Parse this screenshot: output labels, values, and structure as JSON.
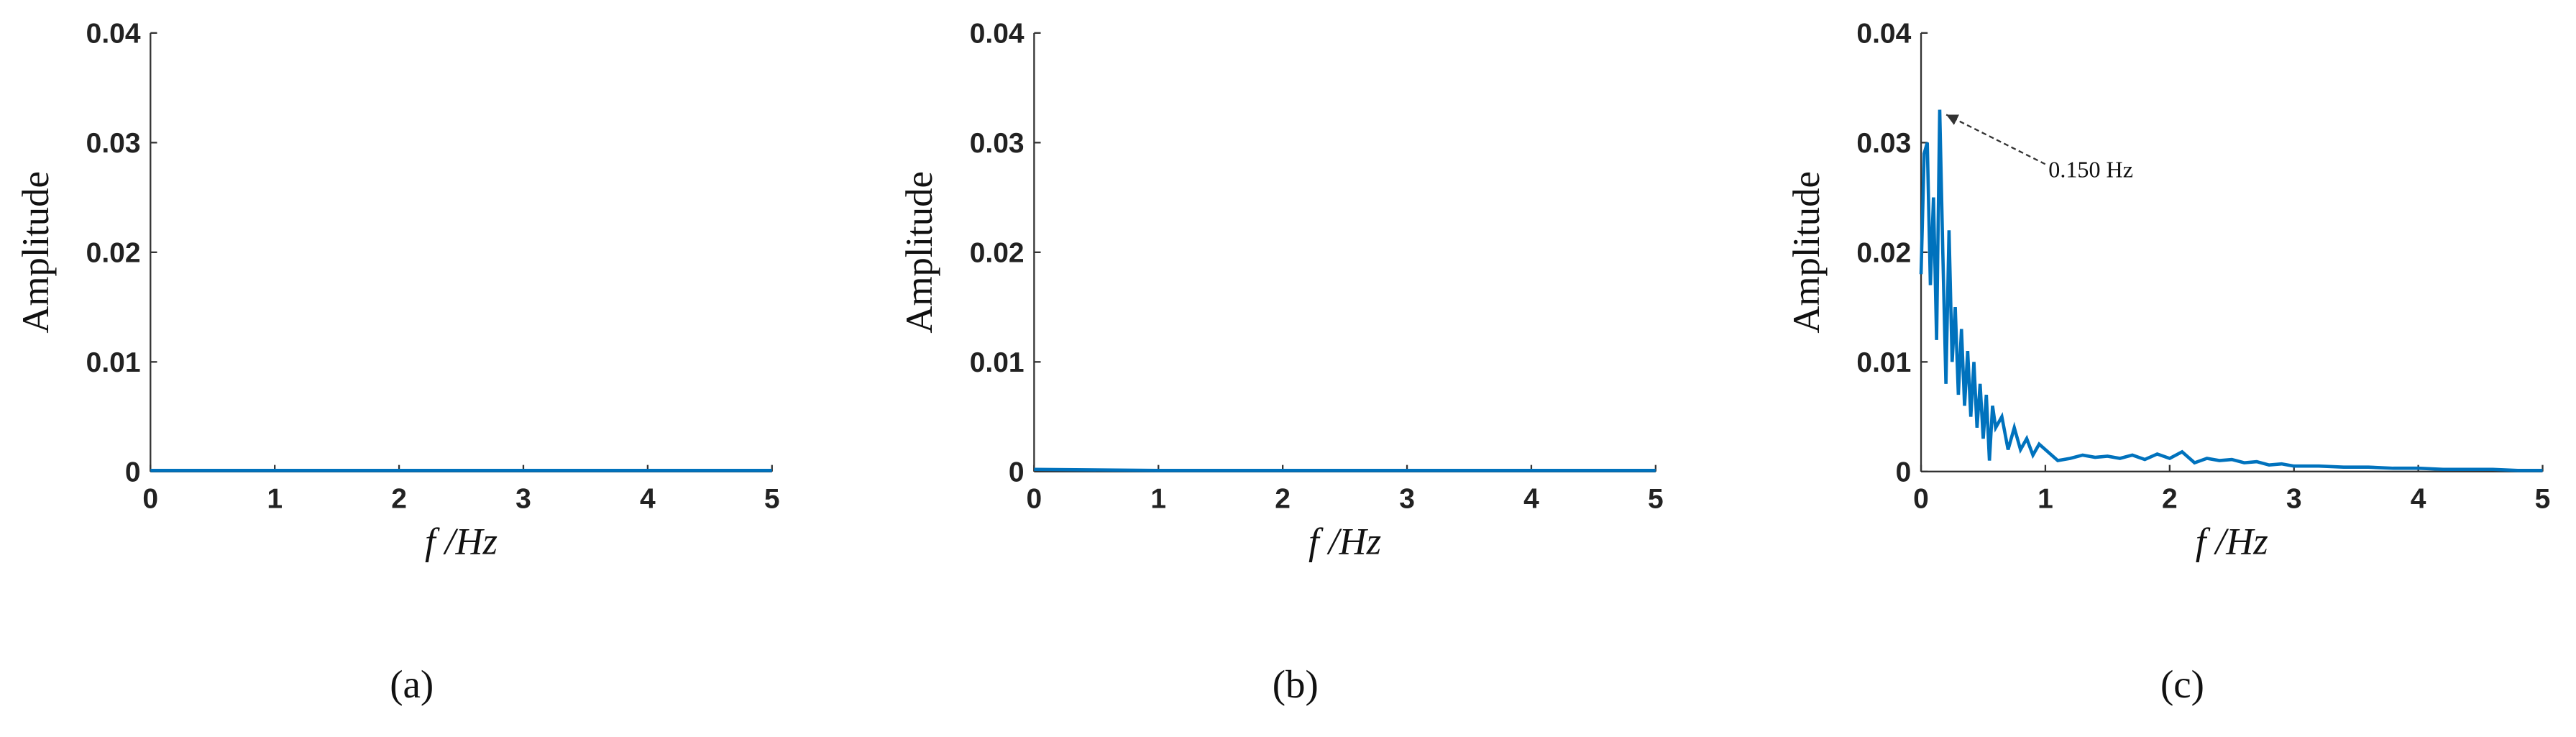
{
  "chart_data": [
    {
      "type": "line",
      "caption": "(a)",
      "xlabel": "f /Hz",
      "ylabel": "Amplitude",
      "x": [
        0,
        1,
        2,
        3,
        4,
        5
      ],
      "values": [
        0.0001,
        0.0001,
        0.0001,
        0.0001,
        0.0001,
        0.0001
      ],
      "color": "#0072bd",
      "xlim": [
        0,
        5
      ],
      "ylim": [
        0,
        0.04
      ],
      "xticks": [
        0,
        1,
        2,
        3,
        4,
        5
      ],
      "yticks": [
        0,
        0.01,
        0.02,
        0.03,
        0.04
      ]
    },
    {
      "type": "line",
      "caption": "(b)",
      "xlabel": "f /Hz",
      "ylabel": "Amplitude",
      "x": [
        0,
        1,
        2,
        3,
        4,
        5
      ],
      "values": [
        0.0002,
        0.0001,
        0.0001,
        0.0001,
        0.0001,
        0.0001
      ],
      "color": "#0072bd",
      "xlim": [
        0,
        5
      ],
      "ylim": [
        0,
        0.04
      ],
      "xticks": [
        0,
        1,
        2,
        3,
        4,
        5
      ],
      "yticks": [
        0,
        0.01,
        0.02,
        0.03,
        0.04
      ]
    },
    {
      "type": "line",
      "caption": "(c)",
      "xlabel": "f /Hz",
      "ylabel": "Amplitude",
      "x": [
        0,
        0.025,
        0.05,
        0.075,
        0.1,
        0.125,
        0.15,
        0.175,
        0.2,
        0.225,
        0.25,
        0.275,
        0.3,
        0.325,
        0.35,
        0.375,
        0.4,
        0.425,
        0.45,
        0.475,
        0.5,
        0.525,
        0.55,
        0.575,
        0.6,
        0.65,
        0.7,
        0.75,
        0.8,
        0.85,
        0.9,
        0.95,
        1.0,
        1.1,
        1.2,
        1.3,
        1.4,
        1.5,
        1.6,
        1.7,
        1.8,
        1.9,
        2.0,
        2.1,
        2.2,
        2.3,
        2.4,
        2.5,
        2.6,
        2.7,
        2.8,
        2.9,
        3.0,
        3.2,
        3.4,
        3.6,
        3.8,
        4.0,
        4.2,
        4.4,
        4.6,
        4.8,
        5.0
      ],
      "values": [
        0.018,
        0.029,
        0.03,
        0.017,
        0.025,
        0.012,
        0.033,
        0.02,
        0.008,
        0.022,
        0.01,
        0.015,
        0.007,
        0.013,
        0.006,
        0.011,
        0.005,
        0.01,
        0.004,
        0.008,
        0.003,
        0.007,
        0.001,
        0.006,
        0.004,
        0.005,
        0.002,
        0.004,
        0.002,
        0.003,
        0.0015,
        0.0025,
        0.002,
        0.001,
        0.0012,
        0.0015,
        0.0013,
        0.0014,
        0.0012,
        0.0015,
        0.0011,
        0.0016,
        0.0012,
        0.0018,
        0.0008,
        0.0012,
        0.001,
        0.0011,
        0.0008,
        0.0009,
        0.0006,
        0.0007,
        0.0005,
        0.0005,
        0.0004,
        0.0004,
        0.0003,
        0.0003,
        0.0002,
        0.0002,
        0.0002,
        0.0001,
        0.0001
      ],
      "color": "#0072bd",
      "xlim": [
        0,
        5
      ],
      "ylim": [
        0,
        0.04
      ],
      "xticks": [
        0,
        1,
        2,
        3,
        4,
        5
      ],
      "yticks": [
        0,
        0.01,
        0.02,
        0.03,
        0.04
      ],
      "annotation": {
        "text": "0.150 Hz",
        "x": 0.15,
        "y": 0.033
      }
    }
  ]
}
